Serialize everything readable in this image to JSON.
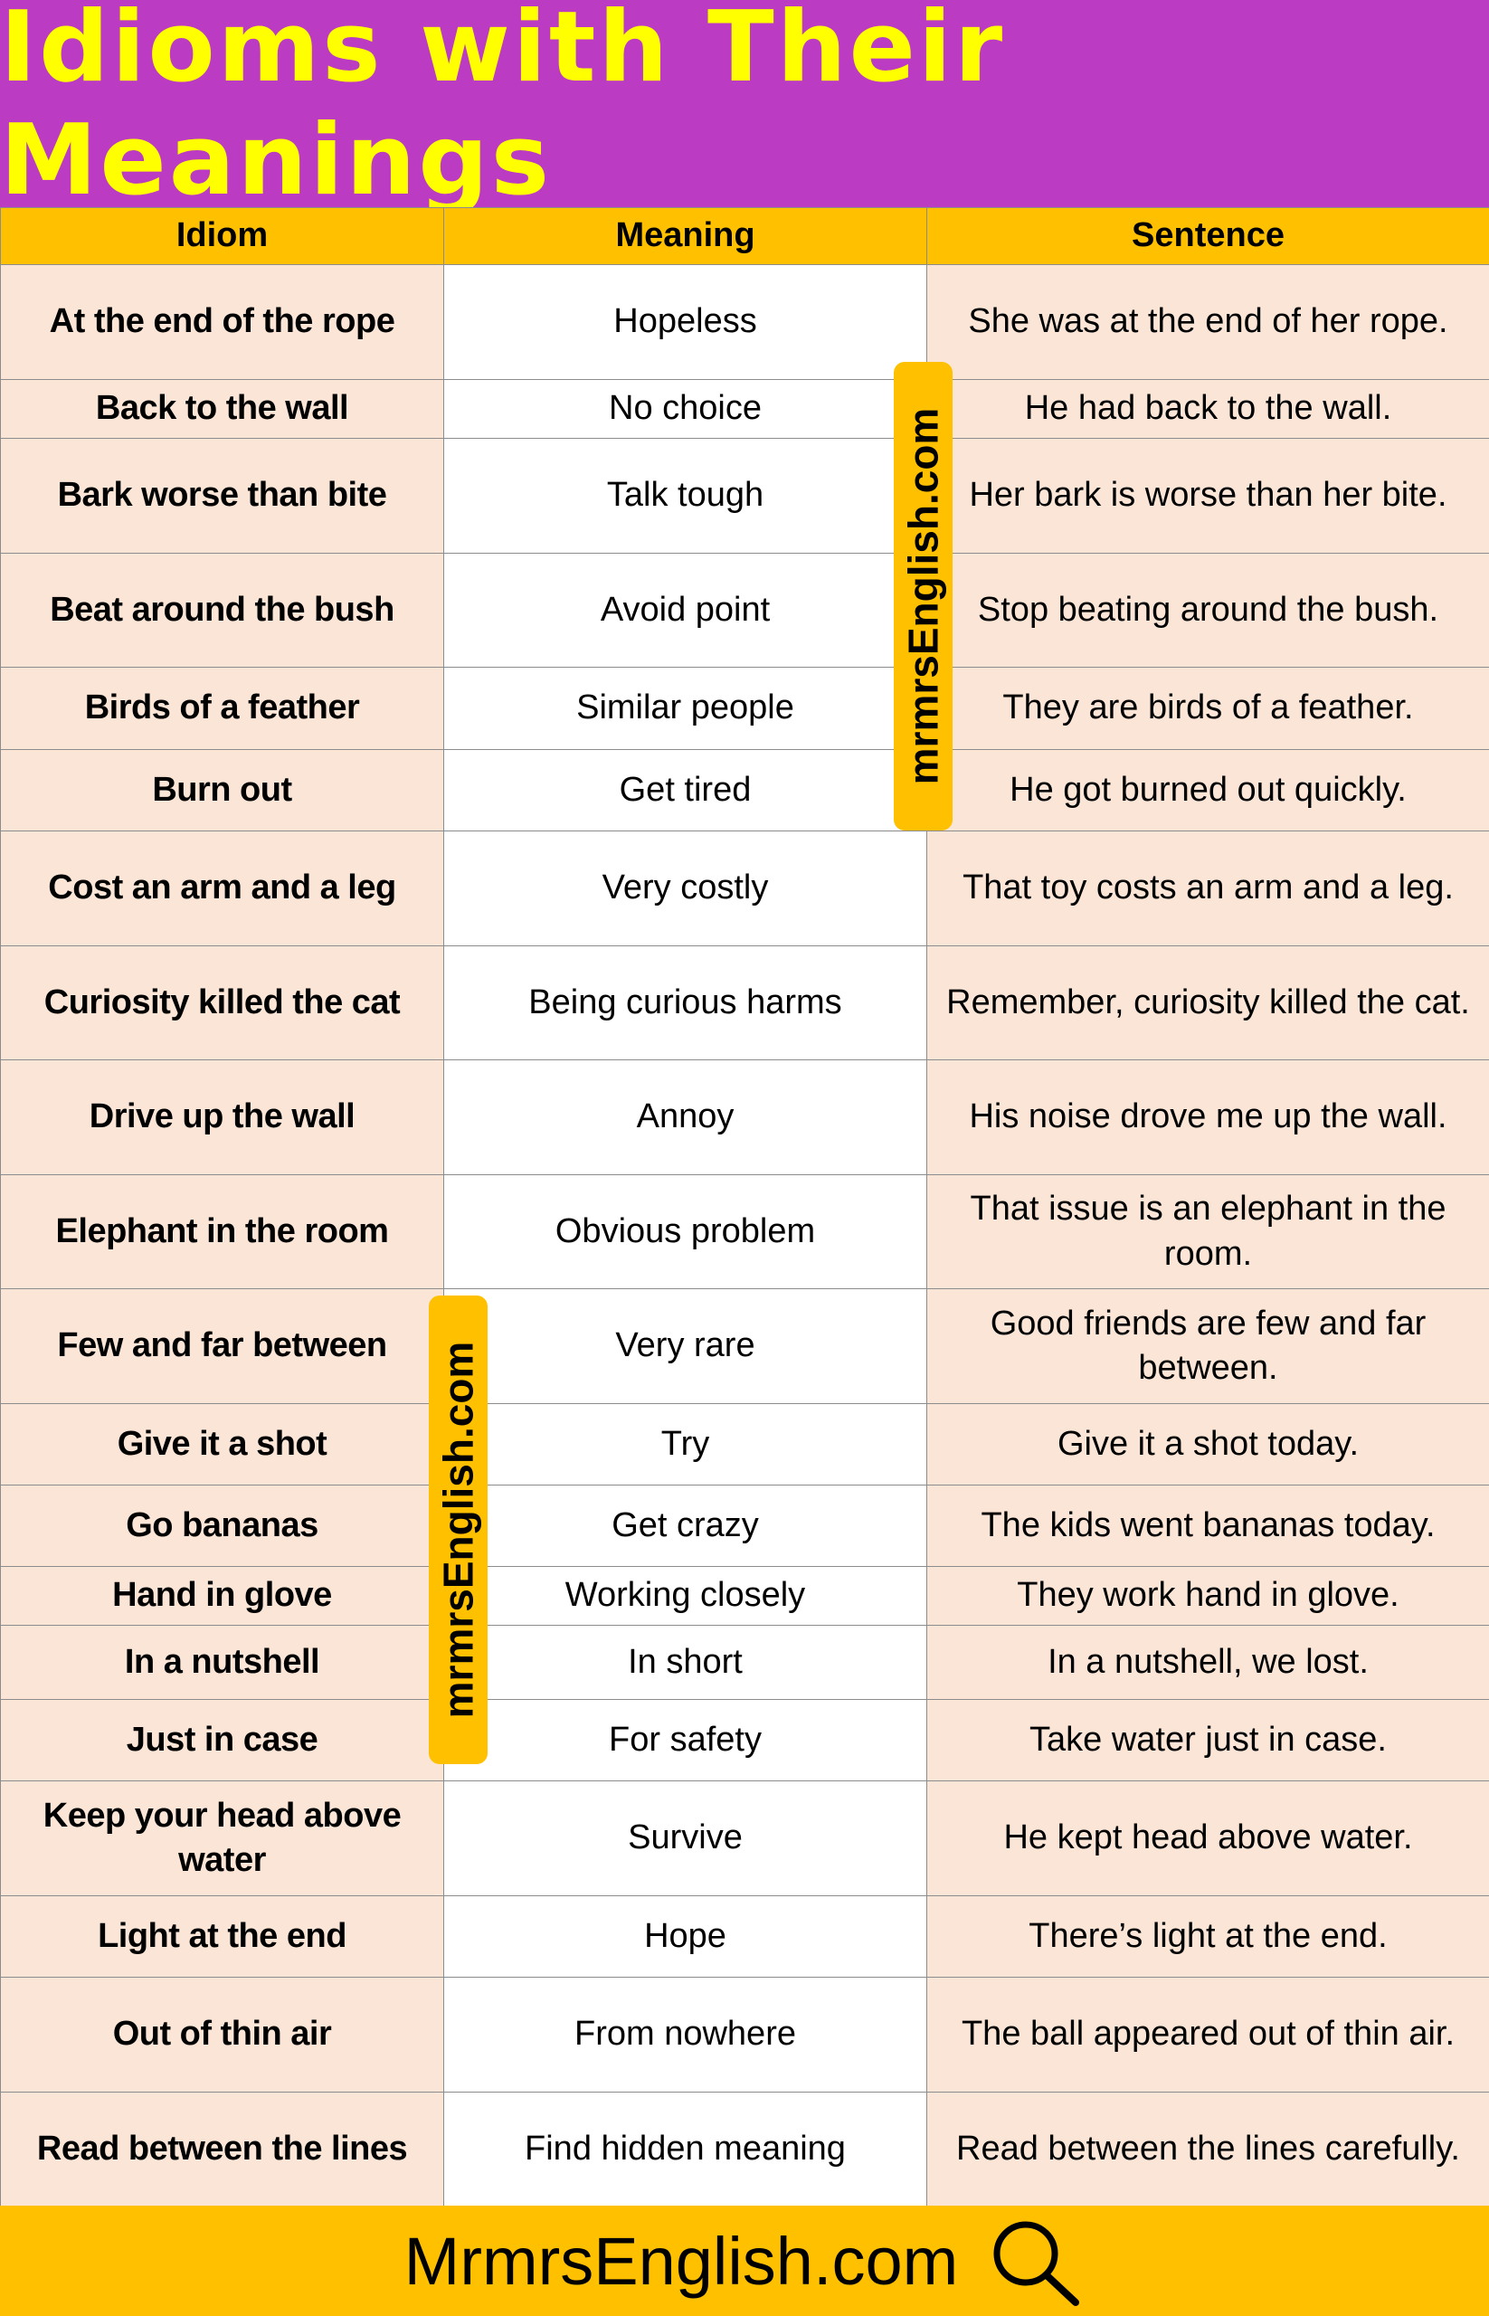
{
  "header": {
    "title": "Idioms with Their Meanings"
  },
  "table": {
    "columns": [
      "Idiom",
      "Meaning",
      "Sentence"
    ],
    "rows": [
      [
        "At the end of the rope",
        "Hopeless",
        "She was at the end of her rope."
      ],
      [
        "Back to the wall",
        "No choice",
        "He had back to the wall."
      ],
      [
        "Bark worse than bite",
        "Talk tough",
        "Her bark is worse than her bite."
      ],
      [
        "Beat around the bush",
        "Avoid point",
        "Stop beating around the bush."
      ],
      [
        "Birds of a feather",
        "Similar people",
        "They are birds of a feather."
      ],
      [
        "Burn out",
        "Get tired",
        "He got burned out quickly."
      ],
      [
        "Cost an arm and a leg",
        "Very costly",
        "That toy costs an arm and a leg."
      ],
      [
        "Curiosity killed the cat",
        "Being curious harms",
        "Remember, curiosity killed the cat."
      ],
      [
        "Drive up the wall",
        "Annoy",
        "His noise drove me up the wall."
      ],
      [
        "Elephant in the room",
        "Obvious problem",
        "That issue is an elephant in the room."
      ],
      [
        "Few and far between",
        "Very rare",
        "Good friends are few and far between."
      ],
      [
        "Give it a shot",
        "Try",
        "Give it a shot today."
      ],
      [
        "Go bananas",
        "Get crazy",
        "The kids went bananas today."
      ],
      [
        "Hand in glove",
        "Working closely",
        "They work hand in glove."
      ],
      [
        "In a nutshell",
        "In short",
        "In a nutshell, we lost."
      ],
      [
        "Just in case",
        "For safety",
        "Take water just in case."
      ],
      [
        "Keep your head above water",
        "Survive",
        "He kept head above water."
      ],
      [
        "Light at the end",
        "Hope",
        "There’s light at the end."
      ],
      [
        "Out of thin air",
        "From nowhere",
        "The ball appeared out of thin air."
      ],
      [
        "Read between the lines",
        "Find hidden meaning",
        "Read between the lines carefully."
      ]
    ]
  },
  "watermarks": [
    "mrmrsEnglish.com",
    "mrmrsEnglish.com"
  ],
  "footer": {
    "text": "MrmrsEnglish.com"
  }
}
